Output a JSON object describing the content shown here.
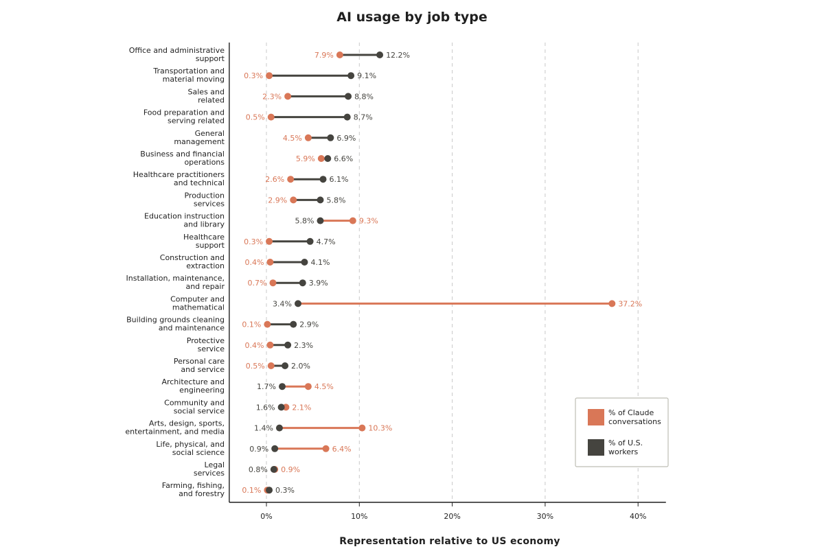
{
  "chart_data": {
    "type": "dumbbell",
    "title": "AI usage by job type",
    "xlabel": "Representation relative to US economy",
    "xlim": [
      -4,
      43
    ],
    "xticks": [
      0,
      10,
      20,
      30,
      40
    ],
    "xtick_labels": [
      "0%",
      "10%",
      "20%",
      "30%",
      "40%"
    ],
    "grid": "vertical dashed",
    "legend_position": "bottom-right",
    "colors": {
      "claude": "#D97757",
      "workers": "#45443F",
      "grid": "#c8c8c8",
      "axis": "#1f1f1f"
    },
    "series": [
      {
        "key": "claude",
        "name": "% of Claude conversations"
      },
      {
        "key": "workers",
        "name": "% of U.S. workers"
      }
    ],
    "categories": [
      {
        "label": [
          "Office and administrative",
          "support"
        ],
        "claude": 7.9,
        "workers": 12.2,
        "claude_label": "7.9%",
        "workers_label": "12.2%"
      },
      {
        "label": [
          "Transportation and",
          "material moving"
        ],
        "claude": 0.3,
        "workers": 9.1,
        "claude_label": "0.3%",
        "workers_label": "9.1%"
      },
      {
        "label": [
          "Sales and",
          "related"
        ],
        "claude": 2.3,
        "workers": 8.8,
        "claude_label": "2.3%",
        "workers_label": "8.8%"
      },
      {
        "label": [
          "Food preparation and",
          "serving related"
        ],
        "claude": 0.5,
        "workers": 8.7,
        "claude_label": "0.5%",
        "workers_label": "8.7%"
      },
      {
        "label": [
          "General",
          "management"
        ],
        "claude": 4.5,
        "workers": 6.9,
        "claude_label": "4.5%",
        "workers_label": "6.9%"
      },
      {
        "label": [
          "Business and financial",
          "operations"
        ],
        "claude": 5.9,
        "workers": 6.6,
        "claude_label": "5.9%",
        "workers_label": "6.6%"
      },
      {
        "label": [
          "Healthcare practitioners",
          "and technical"
        ],
        "claude": 2.6,
        "workers": 6.1,
        "claude_label": "2.6%",
        "workers_label": "6.1%"
      },
      {
        "label": [
          "Production",
          "services"
        ],
        "claude": 2.9,
        "workers": 5.8,
        "claude_label": "2.9%",
        "workers_label": "5.8%"
      },
      {
        "label": [
          "Education instruction",
          "and library"
        ],
        "claude": 9.3,
        "workers": 5.8,
        "claude_label": "9.3%",
        "workers_label": "5.8%"
      },
      {
        "label": [
          "Healthcare",
          "support"
        ],
        "claude": 0.3,
        "workers": 4.7,
        "claude_label": "0.3%",
        "workers_label": "4.7%"
      },
      {
        "label": [
          "Construction and",
          "extraction"
        ],
        "claude": 0.4,
        "workers": 4.1,
        "claude_label": "0.4%",
        "workers_label": "4.1%"
      },
      {
        "label": [
          "Installation, maintenance,",
          "and repair"
        ],
        "claude": 0.7,
        "workers": 3.9,
        "claude_label": "0.7%",
        "workers_label": "3.9%"
      },
      {
        "label": [
          "Computer and",
          "mathematical"
        ],
        "claude": 37.2,
        "workers": 3.4,
        "claude_label": "37.2%",
        "workers_label": "3.4%"
      },
      {
        "label": [
          "Building grounds cleaning",
          "and maintenance"
        ],
        "claude": 0.1,
        "workers": 2.9,
        "claude_label": "0.1%",
        "workers_label": "2.9%"
      },
      {
        "label": [
          "Protective",
          "service"
        ],
        "claude": 0.4,
        "workers": 2.3,
        "claude_label": "0.4%",
        "workers_label": "2.3%"
      },
      {
        "label": [
          "Personal care",
          "and service"
        ],
        "claude": 0.5,
        "workers": 2.0,
        "claude_label": "0.5%",
        "workers_label": "2.0%"
      },
      {
        "label": [
          "Architecture and",
          "engineering"
        ],
        "claude": 4.5,
        "workers": 1.7,
        "claude_label": "4.5%",
        "workers_label": "1.7%"
      },
      {
        "label": [
          "Community and",
          "social service"
        ],
        "claude": 2.1,
        "workers": 1.6,
        "claude_label": "2.1%",
        "workers_label": "1.6%"
      },
      {
        "label": [
          "Arts, design, sports,",
          "entertainment, and media"
        ],
        "claude": 10.3,
        "workers": 1.4,
        "claude_label": "10.3%",
        "workers_label": "1.4%"
      },
      {
        "label": [
          "Life, physical, and",
          "social science"
        ],
        "claude": 6.4,
        "workers": 0.9,
        "claude_label": "6.4%",
        "workers_label": "0.9%"
      },
      {
        "label": [
          "Legal",
          "services"
        ],
        "claude": 0.9,
        "workers": 0.8,
        "claude_label": "0.9%",
        "workers_label": "0.8%"
      },
      {
        "label": [
          "Farming, fishing,",
          "and forestry"
        ],
        "claude": 0.1,
        "workers": 0.3,
        "claude_label": "0.1%",
        "workers_label": "0.3%"
      }
    ],
    "legend": [
      {
        "key": "claude",
        "lines": [
          "% of Claude",
          "conversations"
        ]
      },
      {
        "key": "workers",
        "lines": [
          "% of U.S.",
          "workers"
        ]
      }
    ]
  }
}
